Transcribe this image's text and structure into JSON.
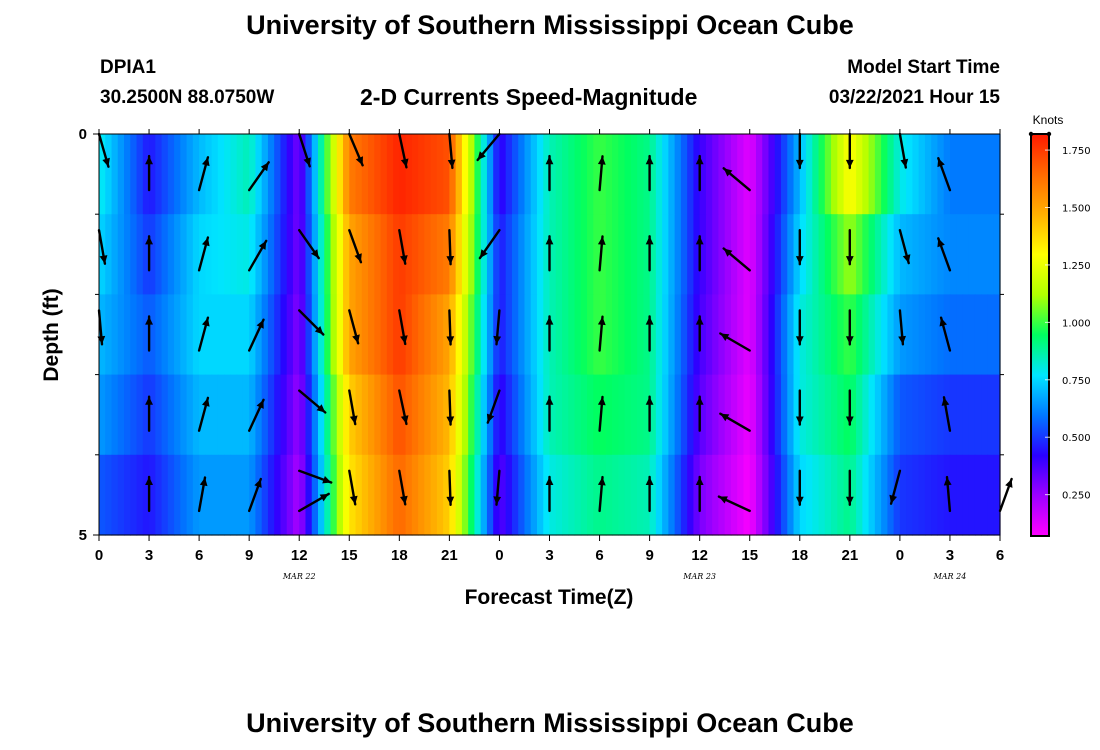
{
  "page": {
    "title_top": "University of Southern Mississippi Ocean Cube",
    "title_bottom": "University of Southern Mississippi Ocean Cube",
    "station_id": "DPIA1",
    "station_coords": "30.2500N 88.0750W",
    "model_start_label": "Model Start Time",
    "model_start_value": "03/22/2021 Hour 15"
  },
  "chart_data": {
    "type": "heatmap",
    "title": "2-D Currents Speed-Magnitude",
    "xlabel": "Forecast Time(Z)",
    "ylabel": "Depth (ft)",
    "x_hours": [
      0,
      3,
      6,
      9,
      12,
      15,
      18,
      21,
      24,
      27,
      30,
      33,
      36,
      39,
      42,
      45,
      48,
      51,
      54
    ],
    "x_tick_labels": [
      "0",
      "3",
      "6",
      "9",
      "12",
      "15",
      "18",
      "21",
      "0",
      "3",
      "6",
      "9",
      "12",
      "15",
      "18",
      "21",
      "0",
      "3",
      "6"
    ],
    "date_labels": [
      {
        "hour": 12,
        "text": "MAR 22"
      },
      {
        "hour": 36,
        "text": "MAR 23"
      },
      {
        "hour": 51,
        "text": "MAR 24"
      }
    ],
    "ylim": [
      0,
      5
    ],
    "y_tick_labels": [
      {
        "value": 0,
        "text": "0"
      },
      {
        "value": 5,
        "text": "5"
      }
    ],
    "y_minor_ticks": [
      1,
      2,
      3,
      4
    ],
    "depths_ft": [
      0.5,
      1.5,
      2.5,
      3.5,
      4.5
    ],
    "colorbar": {
      "unit": "Knots",
      "range": [
        0.07,
        1.82
      ],
      "tick_values": [
        0.25,
        0.5,
        0.75,
        1.0,
        1.25,
        1.5,
        1.75
      ],
      "tick_labels": [
        "0.250",
        "0.500",
        "0.750",
        "1.000",
        "1.250",
        "1.500",
        "1.750"
      ],
      "stops": [
        "#ff00ff",
        "#9d00ff",
        "#2a00ff",
        "#0077ff",
        "#00e5ff",
        "#00ff60",
        "#b0ff00",
        "#ffff00",
        "#ffb000",
        "#ff6a00",
        "#ff1a00"
      ]
    },
    "speed_knots": [
      [
        0.8,
        0.45,
        0.7,
        0.85,
        0.3,
        1.6,
        1.8,
        1.7,
        0.4,
        0.85,
        1.0,
        0.9,
        0.4,
        0.12,
        0.7,
        1.3,
        0.8,
        0.6,
        0.6
      ],
      [
        0.75,
        0.5,
        0.75,
        0.8,
        0.3,
        1.5,
        1.75,
        1.6,
        0.45,
        0.85,
        1.0,
        0.9,
        0.4,
        0.12,
        0.75,
        1.1,
        0.7,
        0.62,
        0.62
      ],
      [
        0.7,
        0.55,
        0.75,
        0.75,
        0.28,
        1.5,
        1.75,
        1.5,
        0.45,
        0.85,
        1.0,
        0.9,
        0.38,
        0.12,
        0.8,
        1.0,
        0.65,
        0.58,
        0.58
      ],
      [
        0.65,
        0.5,
        0.7,
        0.7,
        0.25,
        1.4,
        1.7,
        1.45,
        0.4,
        0.85,
        0.95,
        0.9,
        0.35,
        0.1,
        0.8,
        0.95,
        0.55,
        0.5,
        0.5
      ],
      [
        0.55,
        0.45,
        0.65,
        0.65,
        0.22,
        1.35,
        1.65,
        1.4,
        0.35,
        0.8,
        0.9,
        0.85,
        0.3,
        0.08,
        0.75,
        0.9,
        0.5,
        0.45,
        0.45
      ]
    ],
    "vectors": {
      "hours": [
        0,
        3,
        6,
        9,
        12,
        15,
        18,
        21,
        24,
        27,
        30,
        33,
        36,
        39,
        42,
        45,
        48,
        51,
        54
      ],
      "rows": [
        {
          "depth_ft": 0.0,
          "dir_deg": [
            164,
            null,
            null,
            null,
            162,
            157,
            168,
            175,
            220,
            null,
            null,
            null,
            null,
            null,
            180,
            180,
            170,
            null,
            null
          ]
        },
        {
          "depth_ft": 0.7,
          "dir_deg": [
            null,
            0,
            15,
            35,
            null,
            null,
            null,
            null,
            null,
            0,
            5,
            0,
            0,
            310,
            null,
            null,
            null,
            340,
            null
          ]
        },
        {
          "depth_ft": 1.2,
          "dir_deg": [
            170,
            null,
            null,
            null,
            145,
            160,
            170,
            178,
            215,
            null,
            null,
            null,
            null,
            null,
            180,
            180,
            165,
            null,
            null
          ]
        },
        {
          "depth_ft": 1.7,
          "dir_deg": [
            null,
            0,
            15,
            30,
            null,
            null,
            null,
            null,
            null,
            0,
            5,
            0,
            0,
            310,
            null,
            null,
            null,
            340,
            null
          ]
        },
        {
          "depth_ft": 2.2,
          "dir_deg": [
            175,
            null,
            null,
            null,
            135,
            165,
            170,
            178,
            185,
            null,
            null,
            null,
            null,
            null,
            180,
            180,
            175,
            null,
            null
          ]
        },
        {
          "depth_ft": 2.7,
          "dir_deg": [
            null,
            0,
            15,
            25,
            null,
            null,
            null,
            null,
            null,
            0,
            5,
            0,
            0,
            300,
            null,
            null,
            null,
            345,
            null
          ]
        },
        {
          "depth_ft": 3.2,
          "dir_deg": [
            null,
            null,
            null,
            null,
            130,
            170,
            168,
            178,
            200,
            null,
            null,
            null,
            null,
            null,
            180,
            180,
            null,
            null,
            null
          ]
        },
        {
          "depth_ft": 3.7,
          "dir_deg": [
            null,
            0,
            15,
            25,
            null,
            null,
            null,
            null,
            null,
            0,
            5,
            0,
            0,
            300,
            null,
            null,
            null,
            350,
            null
          ]
        },
        {
          "depth_ft": 4.2,
          "dir_deg": [
            null,
            null,
            null,
            null,
            110,
            170,
            170,
            178,
            185,
            null,
            null,
            null,
            null,
            null,
            180,
            180,
            195,
            null,
            null
          ]
        },
        {
          "depth_ft": 4.7,
          "dir_deg": [
            null,
            0,
            10,
            20,
            60,
            null,
            null,
            null,
            null,
            0,
            5,
            0,
            0,
            295,
            null,
            null,
            null,
            355,
            20
          ]
        }
      ]
    }
  }
}
